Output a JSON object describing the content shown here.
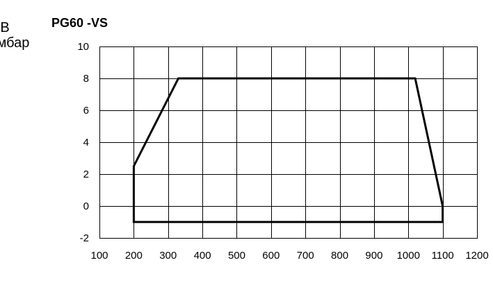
{
  "chart_data": {
    "type": "line",
    "title": "PG60 -VS",
    "xlabel": "",
    "ylabel_lines": [
      "ПРОТИВОДАВЛЕНИЕ В",
      "КАМЕРЕ СГОРАНИЯ, мбар"
    ],
    "xlim": [
      100,
      1200
    ],
    "ylim": [
      -2,
      10
    ],
    "x_ticks": [
      100,
      200,
      300,
      400,
      500,
      600,
      700,
      800,
      900,
      1000,
      1100,
      1200
    ],
    "y_ticks": [
      -2,
      0,
      2,
      4,
      6,
      8,
      10
    ],
    "grid": true,
    "legend": "none",
    "series": [
      {
        "x": [
          200,
          200,
          330,
          1020,
          1100,
          1100,
          200
        ],
        "y": [
          -1,
          2.5,
          8,
          8,
          0,
          -1,
          -1
        ],
        "color": "#000000"
      }
    ]
  }
}
